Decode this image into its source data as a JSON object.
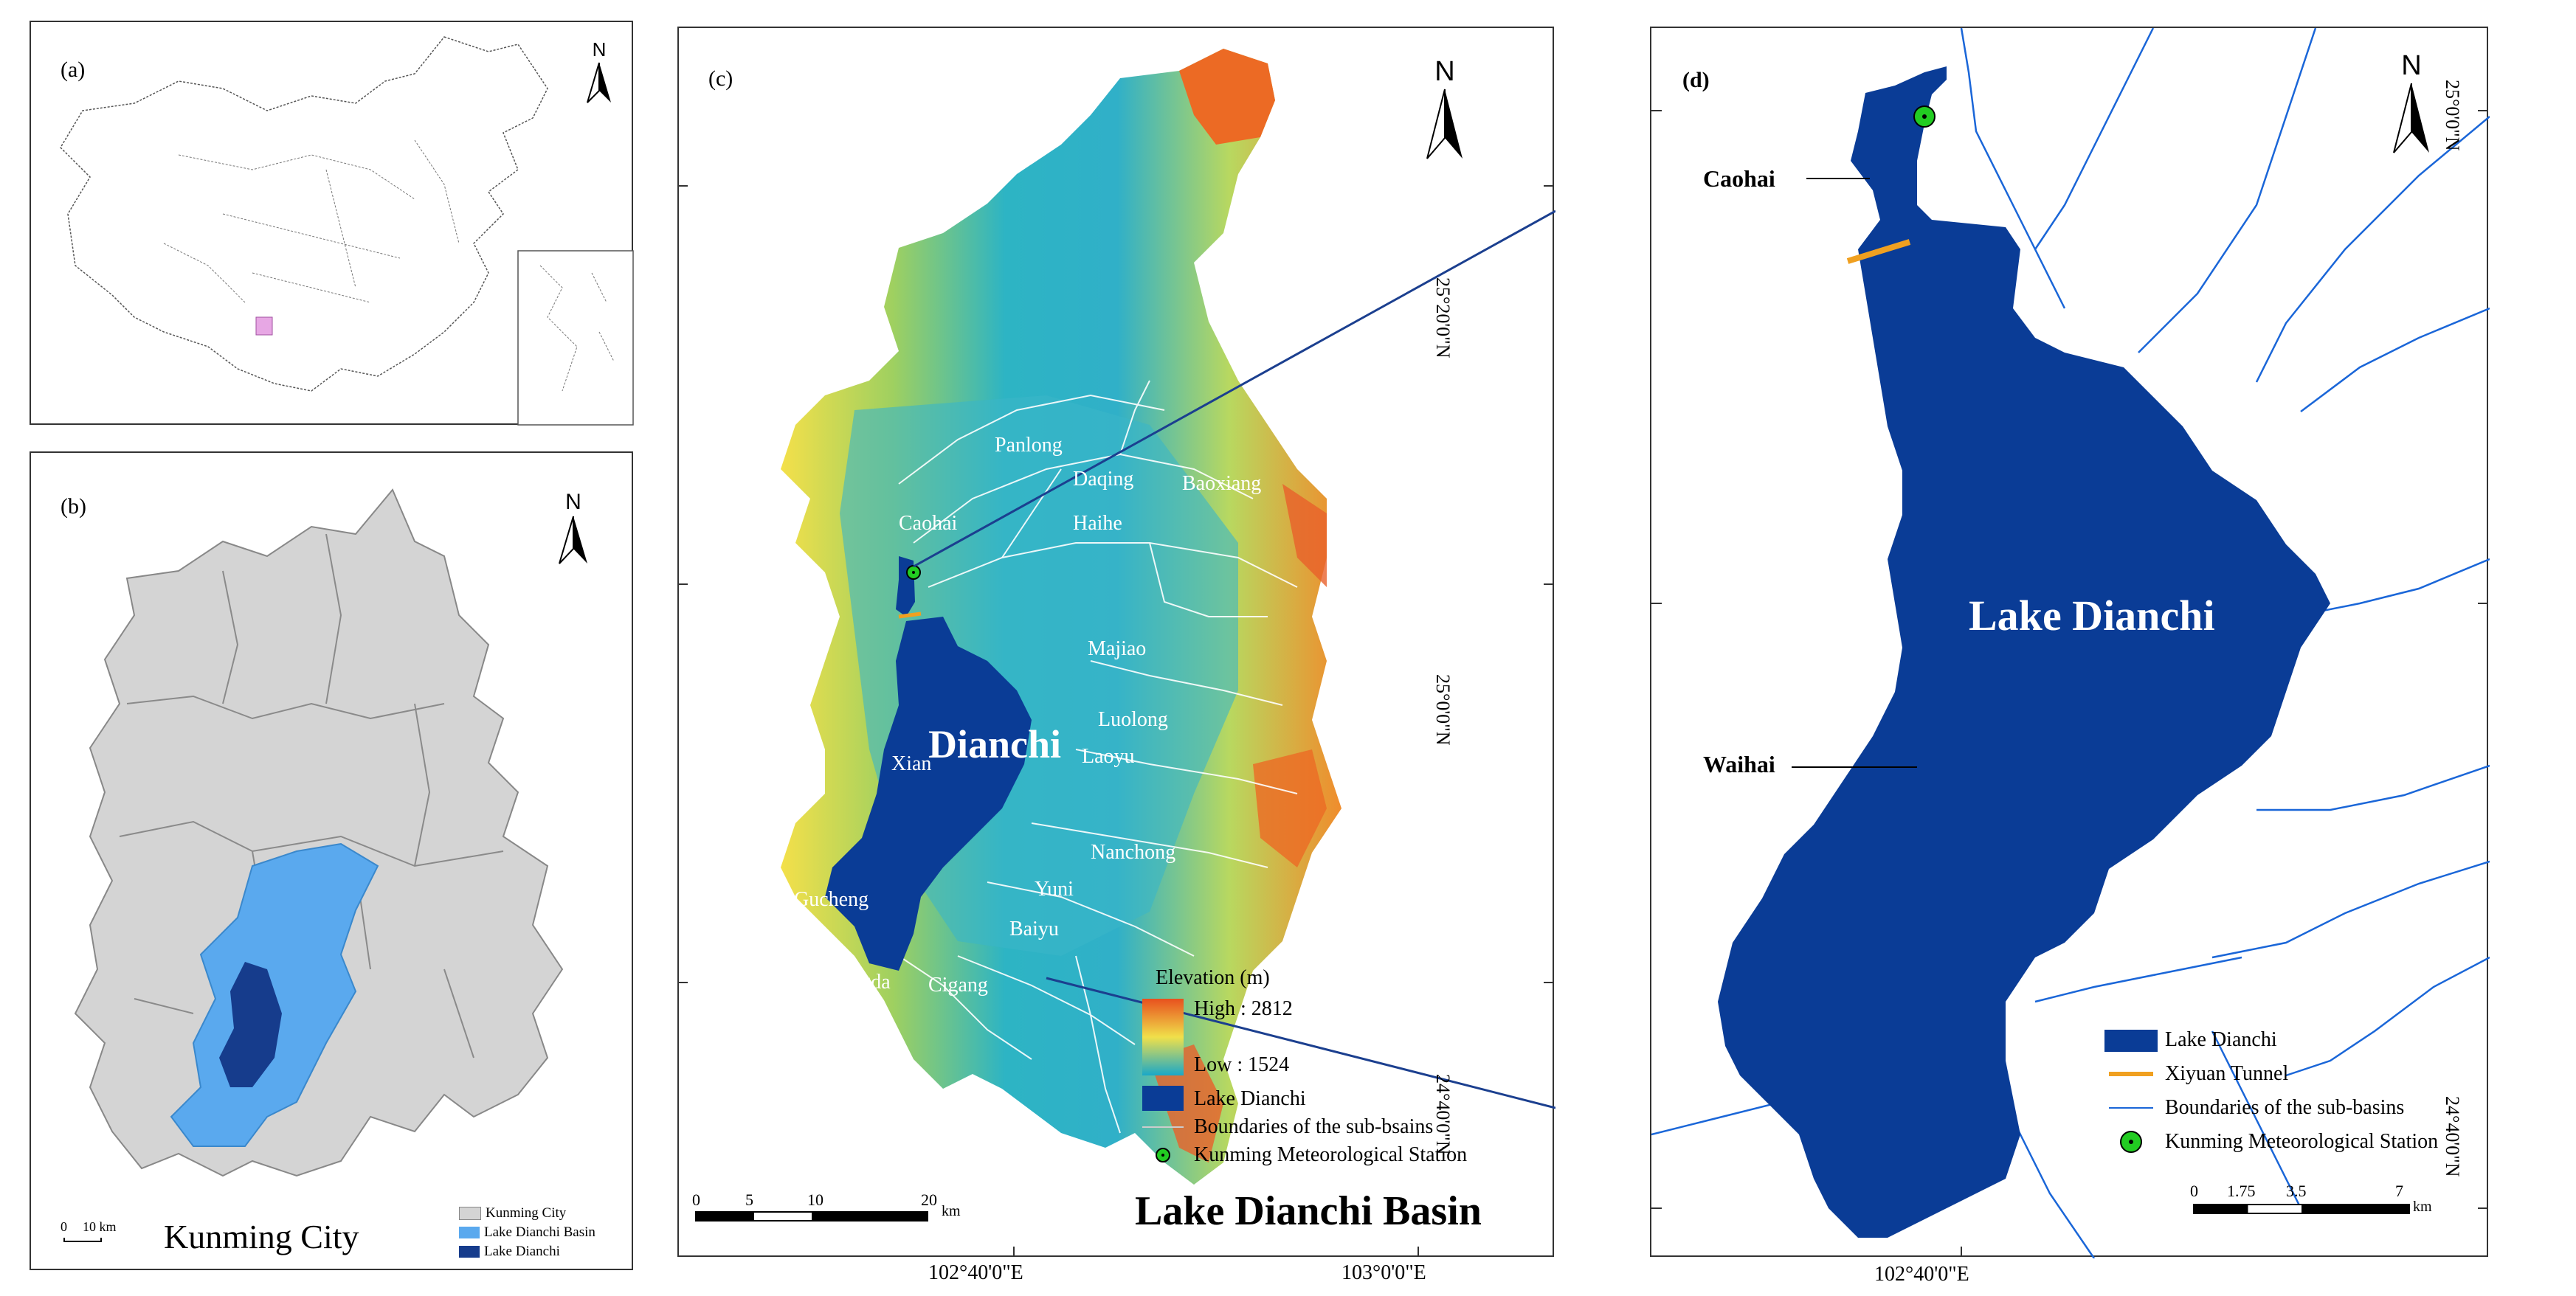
{
  "panels": {
    "a": {
      "label": "(a)",
      "north": "N"
    },
    "b": {
      "label": "(b)",
      "north": "N",
      "title": "Kunming City",
      "scale": {
        "zero": "0",
        "end": "10 km"
      },
      "legend": [
        {
          "label": "Kunming City",
          "color": "#d4d4d4"
        },
        {
          "label": "Lake Dianchi Basin",
          "color": "#5aa9ee"
        },
        {
          "label": "Lake Dianchi",
          "color": "#163c8c"
        }
      ]
    },
    "c": {
      "label": "(c)",
      "north": "N",
      "title": "Lake Dianchi Basin",
      "lake_name": "Dianchi",
      "subbasins": [
        "Panlong",
        "Daqing",
        "Baoxiang",
        "Caohai",
        "Haihe",
        "Majiao",
        "Luolong",
        "Xian",
        "Laoyu",
        "Nanchong",
        "Gucheng",
        "Yuni",
        "Baiyu",
        "Dongda",
        "Cigang"
      ],
      "y_ticks": [
        "25°20'0\"N",
        "25°0'0\"N",
        "24°40'0\"N"
      ],
      "x_ticks": [
        "102°40'0\"E",
        "103°0'0\"E"
      ],
      "scale": {
        "ticks": [
          "0",
          "5",
          "10",
          "20"
        ],
        "unit": "km"
      },
      "legend": {
        "title": "Elevation (m)",
        "high": "High : 2812",
        "low": "Low : 1524",
        "lake": "Lake Dianchi",
        "boundaries": "Boundaries of the sub-bsains",
        "station": "Kunming Meteorological Station"
      }
    },
    "d": {
      "label": "(d)",
      "north": "N",
      "lake_name": "Lake Dianchi",
      "callouts": {
        "caohai": "Caohai",
        "waihai": "Waihai"
      },
      "y_ticks": [
        "25°0'0\"N",
        "24°40'0\"N"
      ],
      "x_ticks": [
        "102°40'0\"E"
      ],
      "scale": {
        "ticks": [
          "0",
          "1.75",
          "3.5",
          "7"
        ],
        "unit": "km"
      },
      "legend": {
        "lake": "Lake Dianchi",
        "tunnel": "Xiyuan Tunnel",
        "boundaries": "Boundaries of the sub-basins",
        "station": "Kunming Meteorological Station"
      }
    }
  },
  "colors": {
    "lake": "#0a3c96",
    "basin": "#5aa9ee",
    "city": "#d4d4d4",
    "tunnel": "#f0a020",
    "river": "#1a66d8",
    "station": "#22cc22",
    "elev_high": "#e8501e",
    "elev_mid": "#f0e04a",
    "elev_low": "#1aa8c8"
  },
  "icons": [
    "north-arrow-icon",
    "station-icon"
  ]
}
